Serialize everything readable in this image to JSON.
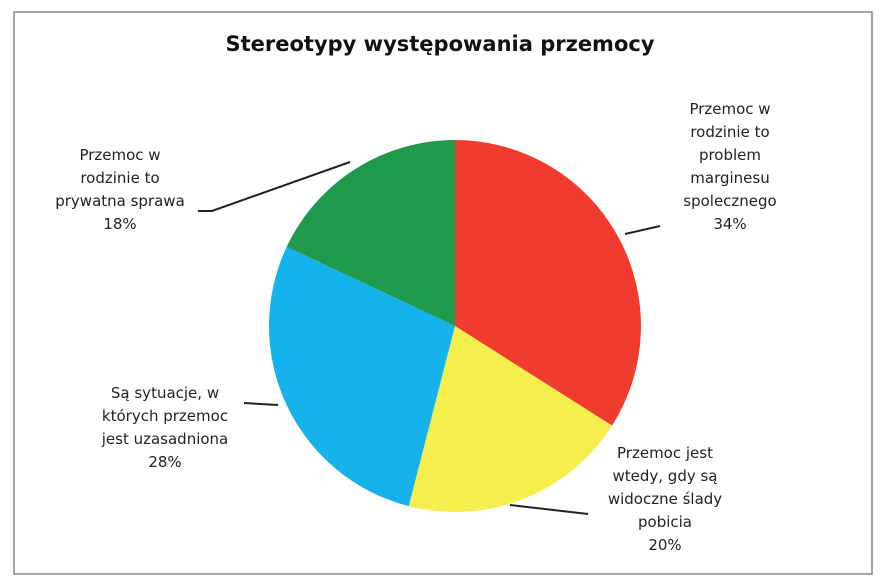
{
  "chart_data": {
    "type": "pie",
    "title": "Stereotypy występowania przemocy",
    "categories": [
      "Przemoc w\nrodzinie to\nproblem\nmarginesu\nspolecznego",
      "Przemoc jest\nwtedy, gdy są\nwidoczne ślady\npobicia",
      "Są sytuacje, w\nktórych przemoc\njest uzasadniona",
      "Przemoc w\nrodzinie to\nprywatna sprawa"
    ],
    "values": [
      34,
      20,
      28,
      18
    ],
    "value_labels": [
      "34%",
      "20%",
      "28%",
      "18%"
    ],
    "colors": [
      "#f03c2e",
      "#f5ee4c",
      "#16b2ec",
      "#1f9a4c"
    ]
  }
}
